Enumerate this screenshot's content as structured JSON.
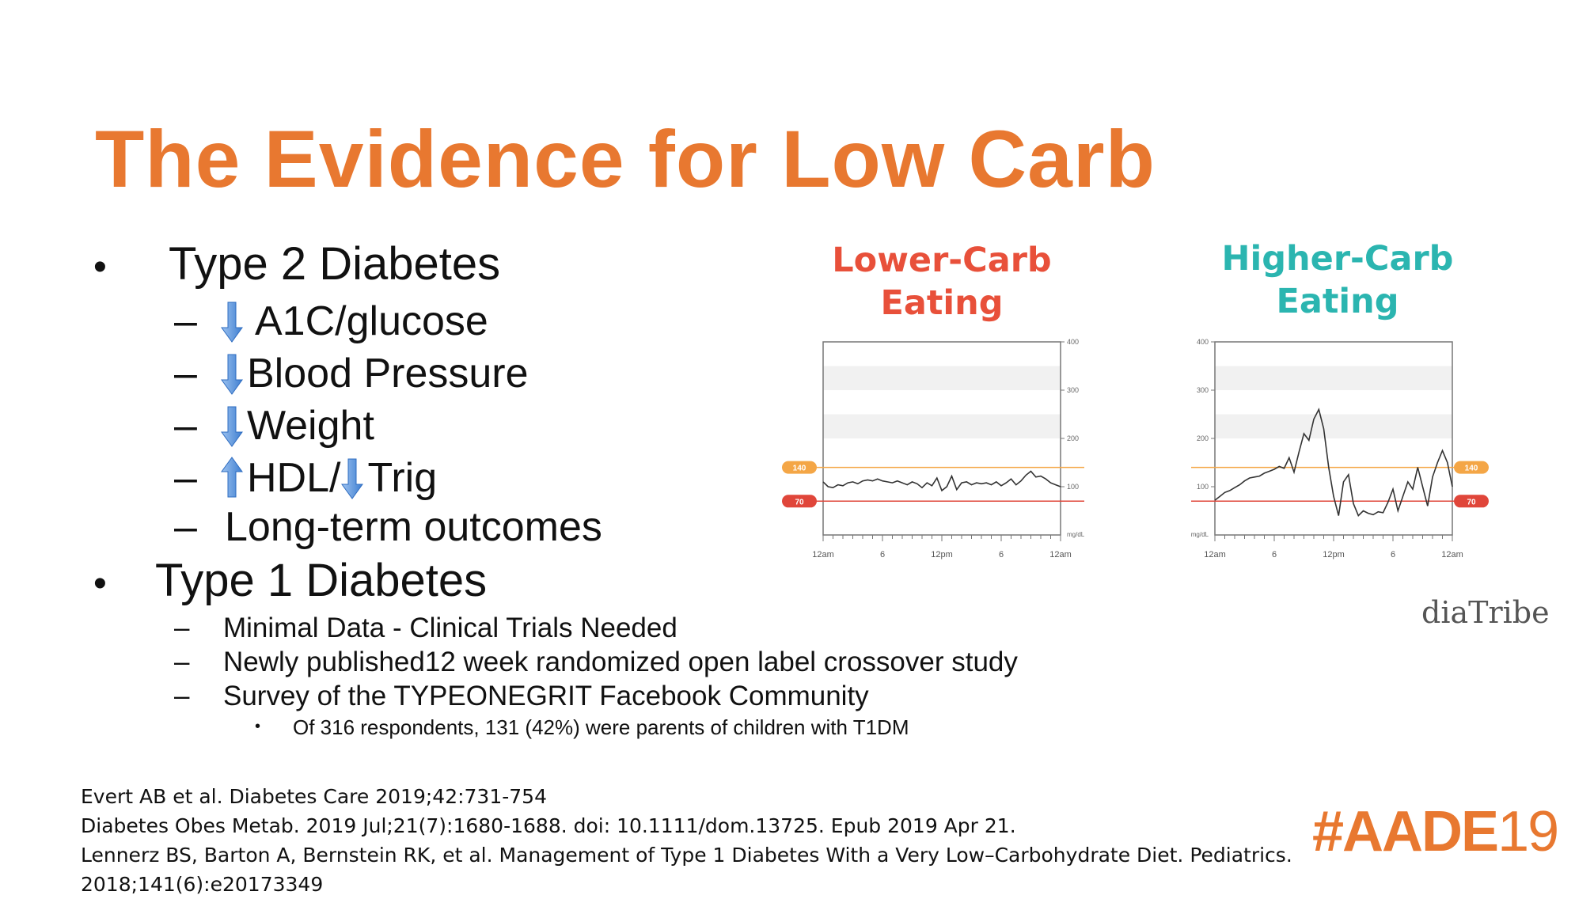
{
  "slide": {
    "title": "The Evidence for Low Carb",
    "bullets": {
      "type2": {
        "label": "Type 2 Diabetes",
        "items": [
          {
            "arrow": "down",
            "text": "A1C/glucose"
          },
          {
            "arrow": "down",
            "text": "Blood Pressure"
          },
          {
            "arrow": "down",
            "text": "Weight"
          },
          {
            "arrow": "up",
            "text": "HDL/",
            "arrow2": "down",
            "text2": "Trig"
          },
          {
            "text": "Long-term outcomes"
          }
        ]
      },
      "type1": {
        "label": "Type 1 Diabetes",
        "items": [
          "Minimal Data - Clinical Trials Needed",
          "Newly published12 week randomized open label crossover study",
          "Survey of the TYPEONEGRIT Facebook Community"
        ],
        "subitem": "Of 316 respondents, 131 (42%) were parents of children with T1DM"
      }
    },
    "references": [
      "Evert AB et al. Diabetes Care 2019;42:731-754",
      "Diabetes Obes Metab. 2019 Jul;21(7):1680-1688. doi: 10.1111/dom.13725. Epub 2019 Apr 21.",
      "Lennerz BS, Barton A, Bernstein RK, et al. Management of Type 1 Diabetes With a Very Low–Carbohydrate Diet. Pediatrics.",
      "2018;141(6):e20173349"
    ],
    "source_logo": "diaTribe",
    "event_tag": {
      "main": "#AADE",
      "year": "19"
    },
    "colors": {
      "title": "#E87830",
      "lower": "#E8503A",
      "higher": "#2BB5B0",
      "arrow": "#4A88D8",
      "band140": "#F4A646",
      "band70": "#E0463A"
    }
  },
  "chart_data": [
    {
      "type": "line",
      "title": "Lower-Carb Eating",
      "title_lines": [
        "Lower-Carb",
        "Eating"
      ],
      "x_ticks": [
        "12am",
        "6",
        "12pm",
        "6",
        "12am"
      ],
      "y_ticks": [
        "400",
        "300",
        "200",
        "100"
      ],
      "ylabel": "mg/dL",
      "ylim": [
        0,
        400
      ],
      "xlim": [
        0,
        24
      ],
      "target_lines": [
        {
          "label": "140",
          "value": 140
        },
        {
          "label": "70",
          "value": 70
        }
      ],
      "y_axis_side": "right",
      "x": [
        0,
        0.5,
        1,
        1.5,
        2,
        2.5,
        3,
        3.5,
        4,
        4.5,
        5,
        5.5,
        6,
        6.5,
        7,
        7.5,
        8,
        8.5,
        9,
        9.5,
        10,
        10.5,
        11,
        11.5,
        12,
        12.5,
        13,
        13.5,
        14,
        14.5,
        15,
        15.5,
        16,
        16.5,
        17,
        17.5,
        18,
        18.5,
        19,
        19.5,
        20,
        20.5,
        21,
        21.5,
        22,
        22.5,
        23,
        23.5,
        24
      ],
      "y": [
        110,
        100,
        98,
        104,
        102,
        108,
        110,
        106,
        112,
        114,
        112,
        116,
        112,
        110,
        108,
        112,
        108,
        104,
        110,
        106,
        98,
        108,
        102,
        118,
        92,
        100,
        122,
        94,
        108,
        110,
        104,
        108,
        106,
        108,
        104,
        110,
        102,
        108,
        116,
        104,
        112,
        124,
        132,
        120,
        122,
        116,
        108,
        104,
        100
      ]
    },
    {
      "type": "line",
      "title": "Higher-Carb Eating",
      "title_lines": [
        "Higher-Carb",
        "Eating"
      ],
      "x_ticks": [
        "12am",
        "6",
        "12pm",
        "6",
        "12am"
      ],
      "y_ticks": [
        "400",
        "300",
        "200",
        "100"
      ],
      "ylabel": "mg/dL",
      "ylim": [
        0,
        400
      ],
      "xlim": [
        0,
        24
      ],
      "target_lines": [
        {
          "label": "140",
          "value": 140
        },
        {
          "label": "70",
          "value": 70
        }
      ],
      "y_axis_side": "left",
      "x": [
        0,
        0.5,
        1,
        1.5,
        2,
        2.5,
        3,
        3.5,
        4,
        4.5,
        5,
        5.5,
        6,
        6.5,
        7,
        7.5,
        8,
        8.5,
        9,
        9.5,
        10,
        10.5,
        11,
        11.5,
        12,
        12.5,
        13,
        13.5,
        14,
        14.5,
        15,
        15.5,
        16,
        16.5,
        17,
        17.5,
        18,
        18.5,
        19,
        19.5,
        20,
        20.5,
        21,
        21.5,
        22,
        22.5,
        23,
        23.5,
        24
      ],
      "y": [
        72,
        80,
        88,
        92,
        98,
        104,
        112,
        118,
        120,
        122,
        128,
        132,
        136,
        142,
        138,
        160,
        130,
        172,
        210,
        196,
        240,
        260,
        220,
        140,
        80,
        40,
        110,
        125,
        65,
        40,
        50,
        45,
        42,
        48,
        46,
        68,
        95,
        50,
        80,
        110,
        95,
        140,
        100,
        60,
        120,
        150,
        175,
        150,
        100
      ]
    }
  ]
}
